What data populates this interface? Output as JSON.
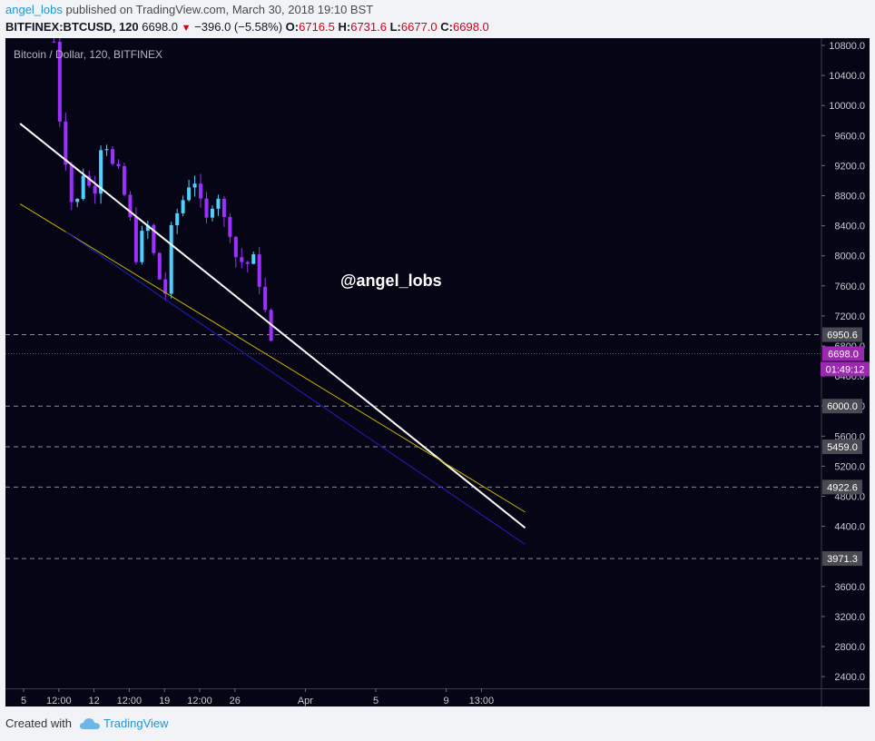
{
  "header": {
    "author": "angel_lobs",
    "published_text": "published on TradingView.com, March 30, 2018 19:10 BST",
    "symbol_info": "BITFINEX:BTCUSD, 120",
    "last": "6698.0",
    "change": "−396.0 (−5.58%)",
    "open_label": "O:",
    "open": "6716.5",
    "high_label": "H:",
    "high": "6731.6",
    "low_label": "L:",
    "low": "6677.0",
    "close_label": "C:",
    "close": "6698.0"
  },
  "footer": {
    "created_with": "Created with",
    "brand": "TradingView"
  },
  "chart_data": {
    "type": "candlestick",
    "title": "Bitcoin / Dollar, 120, BITFINEX",
    "watermark": "@angel_lobs",
    "y_ticks": [
      10800,
      10400,
      10000,
      9600,
      9200,
      8800,
      8400,
      8000,
      7600,
      7200,
      6800,
      6400,
      6000,
      5600,
      5200,
      4800,
      4400,
      3600,
      3200,
      2800,
      2400
    ],
    "y_tick_labels": [
      "10800.0",
      "10400.0",
      "10000.0",
      "9600.0",
      "9200.0",
      "8800.0",
      "8400.0",
      "8000.0",
      "7600.0",
      "7200.0",
      "6800.0",
      "6400.0",
      "6000.0",
      "5600.0",
      "5200.0",
      "4800.0",
      "4400.0",
      "3600.0",
      "3200.0",
      "2800.0",
      "2400.0"
    ],
    "ylim": [
      2150,
      11000
    ],
    "x_ticks": [
      {
        "label": "5",
        "day": 0
      },
      {
        "label": "12:00",
        "day": 0.5
      },
      {
        "label": "12",
        "day": 1
      },
      {
        "label": "12:00",
        "day": 1.5
      },
      {
        "label": "19",
        "day": 2
      },
      {
        "label": "12:00",
        "day": 2.5
      },
      {
        "label": "26",
        "day": 3
      },
      {
        "label": "Apr",
        "day": 4
      },
      {
        "label": "5",
        "day": 5
      },
      {
        "label": "9",
        "day": 6
      },
      {
        "label": "13:00",
        "day": 6.5
      }
    ],
    "price_levels": [
      {
        "value": 6950.6,
        "label": "6950.6",
        "dashed": true
      },
      {
        "value": 6000.0,
        "label": "6000.0",
        "dashed": true
      },
      {
        "value": 5459.0,
        "label": "5459.0",
        "dashed": true
      },
      {
        "value": 4922.6,
        "label": "4922.6",
        "dashed": true
      },
      {
        "value": 3971.3,
        "label": "3971.3",
        "dashed": true
      }
    ],
    "last_price": {
      "value": 6698.0,
      "label": "6698.0",
      "countdown": "01:49:12",
      "color": "#9c27b0"
    },
    "trendlines": [
      {
        "name": "white",
        "color": "#ffffff",
        "from": {
          "day": -0.05,
          "price": 9760
        },
        "to": {
          "day": 7.12,
          "price": 4380
        }
      },
      {
        "name": "yellow",
        "color": "#c8b400",
        "from": {
          "day": -0.05,
          "price": 8690
        },
        "to": {
          "day": 7.12,
          "price": 4590
        }
      },
      {
        "name": "blue",
        "color": "#1f1fbf",
        "from": {
          "day": 0.6,
          "price": 8320
        },
        "to": {
          "day": 7.12,
          "price": 4160
        }
      }
    ],
    "price_path": [
      [
        0.43,
        10850
      ],
      [
        0.47,
        10200
      ],
      [
        0.52,
        9800
      ],
      [
        0.57,
        9500
      ],
      [
        0.63,
        9100
      ],
      [
        0.67,
        8800
      ],
      [
        0.72,
        8500
      ],
      [
        0.8,
        8900
      ],
      [
        0.86,
        9200
      ],
      [
        0.92,
        8950
      ],
      [
        0.98,
        8750
      ],
      [
        1.04,
        9100
      ],
      [
        1.11,
        9600
      ],
      [
        1.18,
        9500
      ],
      [
        1.24,
        9100
      ],
      [
        1.3,
        9300
      ],
      [
        1.36,
        9000
      ],
      [
        1.43,
        8800
      ],
      [
        1.49,
        8600
      ],
      [
        1.55,
        8200
      ],
      [
        1.59,
        8050
      ],
      [
        1.63,
        7900
      ],
      [
        1.69,
        8300
      ],
      [
        1.75,
        8450
      ],
      [
        1.81,
        8150
      ],
      [
        1.87,
        7900
      ],
      [
        1.93,
        7700
      ],
      [
        1.99,
        7400
      ],
      [
        2.03,
        7600
      ],
      [
        2.07,
        8200
      ],
      [
        2.13,
        8400
      ],
      [
        2.19,
        8600
      ],
      [
        2.25,
        8700
      ],
      [
        2.3,
        8900
      ],
      [
        2.36,
        9000
      ],
      [
        2.42,
        9050
      ],
      [
        2.47,
        8900
      ],
      [
        2.52,
        8600
      ],
      [
        2.57,
        8400
      ],
      [
        2.63,
        8500
      ],
      [
        2.69,
        8800
      ],
      [
        2.75,
        8900
      ],
      [
        2.79,
        8700
      ],
      [
        2.84,
        8450
      ],
      [
        2.9,
        8500
      ],
      [
        2.95,
        8300
      ],
      [
        3.01,
        8000
      ],
      [
        3.07,
        7950
      ],
      [
        3.13,
        7900
      ],
      [
        3.19,
        7900
      ],
      [
        3.25,
        7950
      ],
      [
        3.31,
        7800
      ],
      [
        3.37,
        7600
      ],
      [
        3.4,
        7500
      ],
      [
        3.44,
        7150
      ],
      [
        3.48,
        6950
      ],
      [
        3.53,
        6698
      ]
    ]
  }
}
